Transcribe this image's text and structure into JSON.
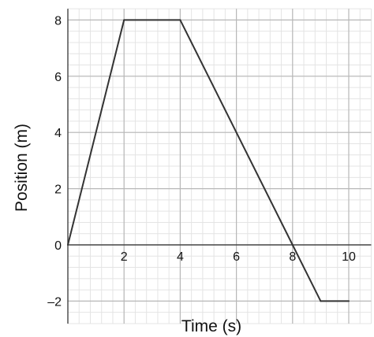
{
  "chart_data": {
    "type": "line",
    "title": "",
    "xlabel": "Time (s)",
    "ylabel": "Position (m)",
    "xlim": [
      0,
      10.8
    ],
    "ylim": [
      -2.8,
      8.4
    ],
    "x_ticks": [
      2,
      4,
      6,
      8,
      10
    ],
    "y_ticks": [
      -2,
      0,
      2,
      4,
      6,
      8
    ],
    "x_tick_labels": [
      "2",
      "4",
      "6",
      "8",
      "10"
    ],
    "y_tick_labels": [
      "–2",
      "0",
      "2",
      "4",
      "6",
      "8"
    ],
    "grid": true,
    "minor_grid_step": 0.4,
    "series": [
      {
        "x": [
          0,
          2,
          4,
          8,
          9,
          10
        ],
        "y": [
          0,
          8,
          8,
          0,
          -2,
          -2
        ],
        "color": "#333333"
      }
    ],
    "colors": {
      "line": "#333333",
      "axis": "#444444",
      "major_grid": "#b8b8b8",
      "minor_grid": "#e4e4e4"
    }
  }
}
